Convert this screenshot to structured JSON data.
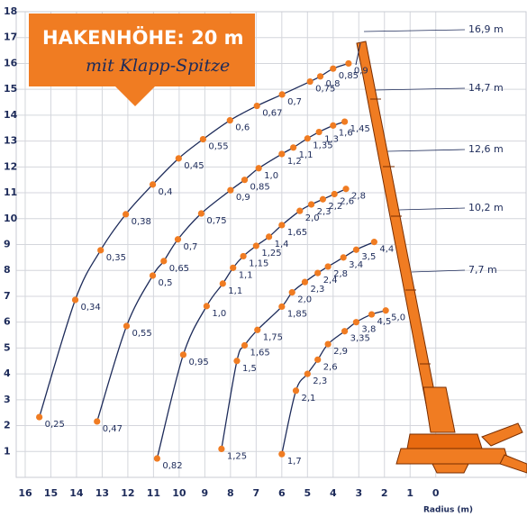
{
  "chart_data": {
    "type": "line",
    "x_label": "Radius (m)",
    "xlim": [
      16.35,
      -3.52
    ],
    "ylim": [
      0,
      18
    ],
    "xticks": [
      16,
      15,
      14,
      13,
      12,
      11,
      10,
      9,
      8,
      7,
      6,
      5,
      4,
      3,
      2,
      1,
      0
    ],
    "yticks": [
      1,
      2,
      3,
      4,
      5,
      6,
      7,
      8,
      9,
      10,
      11,
      12,
      13,
      14,
      15,
      16,
      17,
      18
    ],
    "grid": true,
    "line_color": "#1d2b5a",
    "point_color": "#f07c22",
    "series": [
      {
        "name": "16,9 m",
        "x": [
          15.45,
          14.05,
          13.06,
          12.08,
          11.03,
          10.02,
          9.07,
          8.02,
          6.97,
          5.99,
          4.9,
          4.5,
          4.0,
          3.4
        ],
        "values": [
          2.33,
          6.86,
          8.78,
          10.17,
          11.32,
          12.33,
          13.07,
          13.8,
          14.36,
          14.8,
          15.3,
          15.5,
          15.8,
          16.0
        ],
        "labels": [
          "0,25",
          "0,34",
          "0,35",
          "0,38",
          "0,4",
          "0,45",
          "0,55",
          "0,6",
          "0,67",
          "0,7",
          "0,75",
          "0,8",
          "0,85",
          "0,9"
        ]
      },
      {
        "name": "14,7 m",
        "x": [
          13.2,
          12.05,
          11.03,
          10.6,
          10.05,
          9.14,
          8.0,
          7.45,
          6.9,
          6.0,
          5.55,
          5.0,
          4.55,
          4.0,
          3.55
        ],
        "values": [
          2.16,
          5.85,
          7.8,
          8.36,
          9.2,
          10.2,
          11.1,
          11.5,
          11.95,
          12.5,
          12.75,
          13.1,
          13.35,
          13.6,
          13.75
        ],
        "labels": [
          "0,47",
          "0,55",
          "0,5",
          "0,65",
          "0,7",
          "0,75",
          "0,9",
          "0,85",
          "1,0",
          "1,2",
          "1,1",
          "1,35",
          "1,3",
          "1,6",
          "1,45"
        ]
      },
      {
        "name": "12,6 m",
        "x": [
          10.86,
          9.84,
          8.93,
          8.3,
          7.9,
          7.5,
          7.0,
          6.5,
          6.0,
          5.3,
          4.85,
          4.4,
          3.95,
          3.5
        ],
        "values": [
          0.73,
          4.74,
          6.62,
          7.49,
          8.1,
          8.55,
          8.95,
          9.3,
          9.75,
          10.3,
          10.55,
          10.75,
          10.95,
          11.15
        ],
        "labels": [
          "0,82",
          "0,95",
          "1,0",
          "1,1",
          "1,1",
          "1,15",
          "1,25",
          "1,4",
          "1,65",
          "2,0",
          "2,3",
          "2,2",
          "2,6",
          "2,8"
        ]
      },
      {
        "name": "10,2 m",
        "x": [
          8.35,
          7.75,
          7.45,
          6.95,
          6.0,
          5.6,
          5.1,
          4.6,
          4.2,
          3.6,
          3.1,
          2.4
        ],
        "values": [
          1.1,
          4.5,
          5.1,
          5.7,
          6.6,
          7.15,
          7.55,
          7.9,
          8.15,
          8.5,
          8.8,
          9.1
        ],
        "labels": [
          "1,25",
          "1,5",
          "1,65",
          "1,75",
          "1,85",
          "2,0",
          "2,3",
          "2,4",
          "2,8",
          "3,4",
          "3,5",
          "4,4"
        ]
      },
      {
        "name": "7,7 m",
        "x": [
          6.0,
          5.45,
          5.0,
          4.6,
          4.2,
          3.55,
          3.1,
          2.5,
          1.95
        ],
        "values": [
          0.9,
          3.35,
          4.0,
          4.55,
          5.15,
          5.65,
          6.0,
          6.3,
          6.45
        ],
        "labels": [
          "1,7",
          "2,1",
          "2,3",
          "2,6",
          "2,9",
          "3,35",
          "3,8",
          "4,5",
          "5,0"
        ]
      }
    ]
  },
  "banner": {
    "title": "HAKENHÖHE: 20 m",
    "subtitle": "mit Klapp-Spitze"
  }
}
